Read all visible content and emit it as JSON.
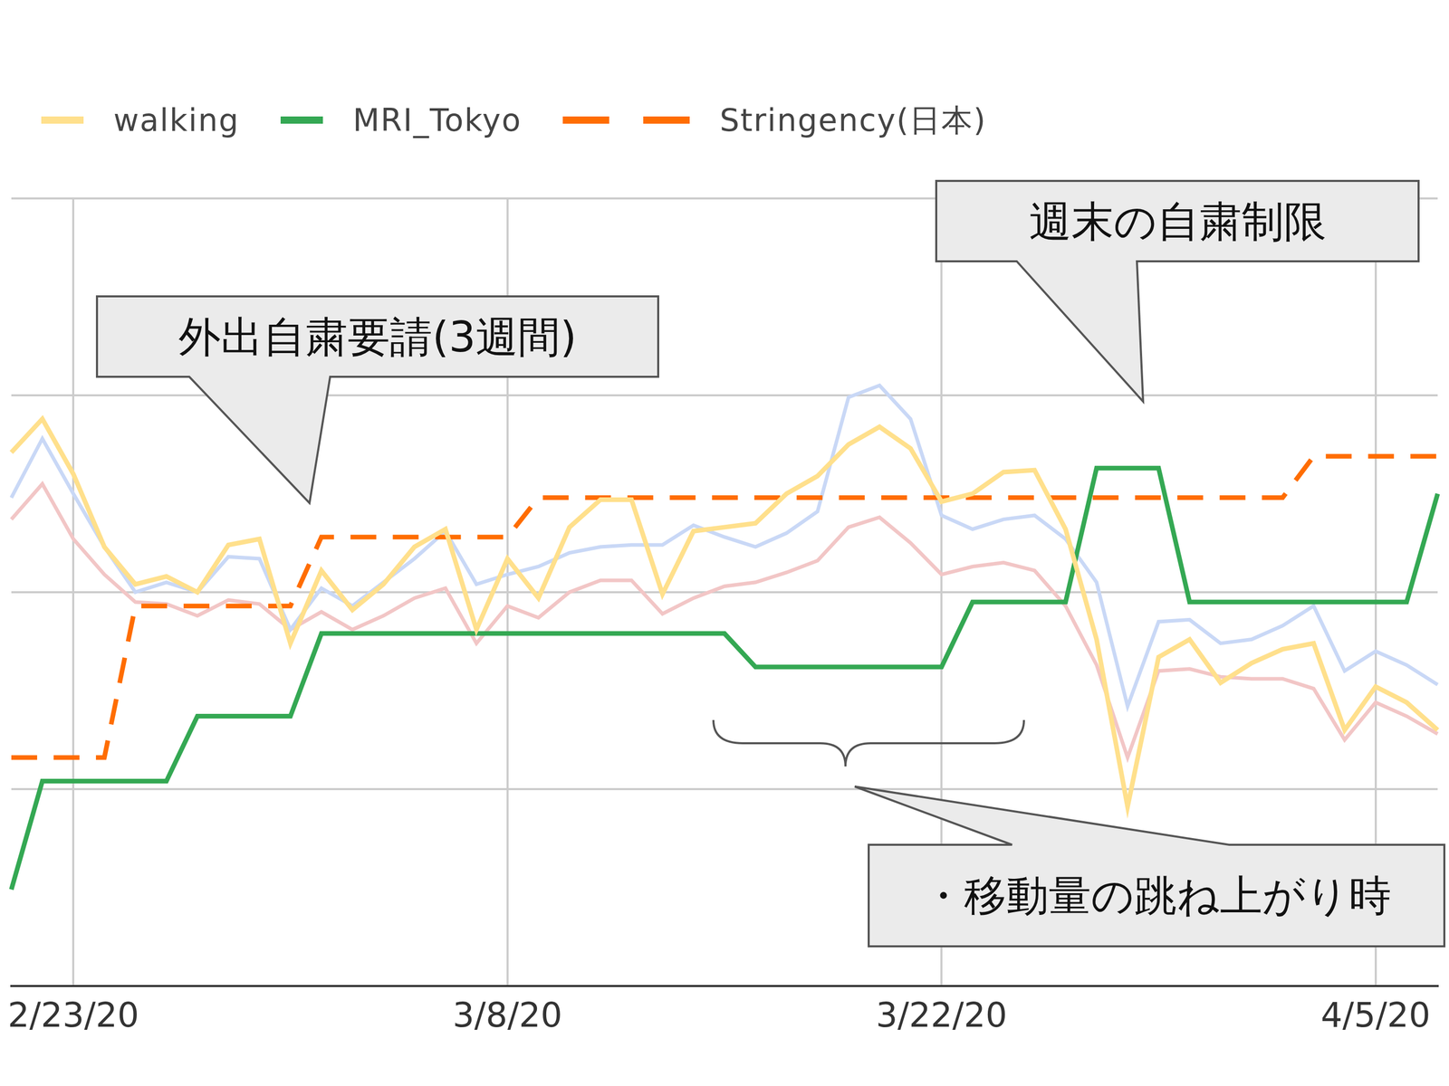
{
  "chart_data": {
    "type": "line",
    "categories": [
      null,
      null,
      "2/23/20",
      null,
      null,
      null,
      null,
      null,
      null,
      null,
      null,
      null,
      null,
      null,
      null,
      null,
      "3/8/20",
      null,
      null,
      null,
      null,
      null,
      null,
      null,
      null,
      null,
      null,
      null,
      null,
      null,
      "3/22/20",
      null,
      null,
      null,
      null,
      null,
      null,
      null,
      null,
      null,
      null,
      null,
      null,
      null,
      "4/5/20",
      null,
      null
    ],
    "series": [
      {
        "name": "walking",
        "color": "#ffe08c",
        "line_style": "solid",
        "values": [
          2.71,
          2.88,
          2.6,
          2.23,
          2.04,
          2.08,
          2.0,
          2.24,
          2.27,
          1.74,
          2.11,
          1.91,
          2.04,
          2.23,
          2.32,
          1.81,
          2.17,
          1.97,
          2.33,
          2.47,
          2.47,
          1.99,
          2.31,
          2.33,
          2.35,
          2.5,
          2.59,
          2.75,
          2.84,
          2.73,
          2.46,
          2.5,
          2.61,
          2.62,
          2.32,
          1.76,
          0.91,
          1.67,
          1.76,
          1.54,
          1.64,
          1.71,
          1.74,
          1.3,
          1.52,
          1.44,
          1.3
        ]
      },
      {
        "name": "MRI_Tokyo",
        "color": "#34a853",
        "line_style": "solid",
        "values": [
          0.49,
          1.04,
          1.04,
          1.04,
          1.04,
          1.04,
          1.37,
          1.37,
          1.37,
          1.37,
          1.79,
          1.79,
          1.79,
          1.79,
          1.79,
          1.79,
          1.79,
          1.79,
          1.79,
          1.79,
          1.79,
          1.79,
          1.79,
          1.79,
          1.62,
          1.62,
          1.62,
          1.62,
          1.62,
          1.62,
          1.62,
          1.95,
          1.95,
          1.95,
          1.95,
          2.63,
          2.63,
          2.63,
          1.95,
          1.95,
          1.95,
          1.95,
          1.95,
          1.95,
          1.95,
          1.95,
          2.5
        ]
      },
      {
        "name": "Stringency(日本)",
        "color": "#ff6d01",
        "line_style": "dashed",
        "values": [
          1.16,
          1.16,
          1.16,
          1.16,
          1.93,
          1.93,
          1.93,
          1.93,
          1.93,
          1.93,
          2.28,
          2.28,
          2.28,
          2.28,
          2.28,
          2.28,
          2.28,
          2.48,
          2.48,
          2.48,
          2.48,
          2.48,
          2.48,
          2.48,
          2.48,
          2.48,
          2.48,
          2.48,
          2.48,
          2.48,
          2.48,
          2.48,
          2.48,
          2.48,
          2.48,
          2.48,
          2.48,
          2.48,
          2.48,
          2.48,
          2.48,
          2.48,
          2.69,
          2.69,
          2.69,
          2.69,
          2.69
        ]
      },
      {
        "color": "#c9d8f6",
        "line_style": "solid",
        "values": [
          2.48,
          2.78,
          2.5,
          2.23,
          2.0,
          2.05,
          2.0,
          2.18,
          2.17,
          1.81,
          2.02,
          1.93,
          2.05,
          2.17,
          2.31,
          2.04,
          2.09,
          2.13,
          2.2,
          2.23,
          2.24,
          2.24,
          2.34,
          2.28,
          2.23,
          2.3,
          2.41,
          2.99,
          3.05,
          2.88,
          2.39,
          2.32,
          2.37,
          2.39,
          2.27,
          2.05,
          1.42,
          1.85,
          1.86,
          1.74,
          1.76,
          1.83,
          1.93,
          1.6,
          1.7,
          1.63,
          1.53
        ]
      },
      {
        "color": "#f2c6c6",
        "line_style": "solid",
        "values": [
          2.37,
          2.55,
          2.27,
          2.09,
          1.95,
          1.94,
          1.88,
          1.96,
          1.94,
          1.81,
          1.9,
          1.81,
          1.88,
          1.97,
          2.02,
          1.74,
          1.93,
          1.87,
          2.0,
          2.06,
          2.06,
          1.89,
          1.97,
          2.03,
          2.05,
          2.1,
          2.16,
          2.33,
          2.38,
          2.25,
          2.09,
          2.13,
          2.15,
          2.11,
          1.93,
          1.63,
          1.16,
          1.6,
          1.61,
          1.57,
          1.56,
          1.56,
          1.51,
          1.25,
          1.44,
          1.37,
          1.28
        ]
      }
    ],
    "ylim": [
      0,
      4
    ],
    "yticks": [
      0,
      1,
      2,
      3,
      4
    ],
    "grid": true,
    "tick_labels": "x",
    "legend": "top",
    "annotations": [
      "外出自粛要請(3週間)",
      "週末の自粛制限",
      "・移動量の跳ね上がり時"
    ]
  }
}
